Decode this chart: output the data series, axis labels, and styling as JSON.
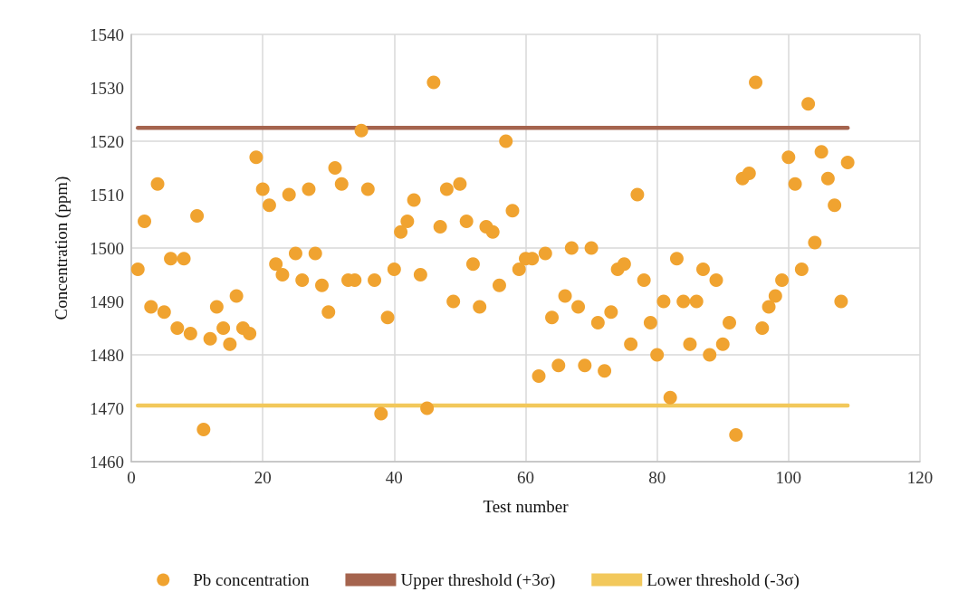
{
  "chart_data": {
    "type": "scatter",
    "xlabel": "Test number",
    "ylabel": "Concentration (ppm)",
    "xlim": [
      0,
      120
    ],
    "xticks": [
      0,
      20,
      40,
      60,
      80,
      100,
      120
    ],
    "ylim": [
      1460,
      1540
    ],
    "yticks": [
      1460,
      1470,
      1480,
      1490,
      1500,
      1510,
      1520,
      1530,
      1540
    ],
    "grid": true,
    "legend": "bottom",
    "marker": "circle",
    "series": [
      {
        "name": "Pb concentration",
        "color": "#f0a330",
        "x": [
          1,
          2,
          3,
          4,
          5,
          6,
          7,
          8,
          9,
          10,
          11,
          12,
          13,
          14,
          15,
          16,
          17,
          18,
          19,
          20,
          21,
          22,
          23,
          24,
          25,
          26,
          27,
          28,
          29,
          30,
          31,
          32,
          33,
          34,
          35,
          36,
          37,
          38,
          39,
          40,
          41,
          42,
          43,
          44,
          45,
          46,
          47,
          48,
          49,
          50,
          51,
          52,
          53,
          54,
          55,
          56,
          57,
          58,
          59,
          60,
          61,
          62,
          63,
          64,
          65,
          66,
          67,
          68,
          69,
          70,
          71,
          72,
          73,
          74,
          75,
          76,
          77,
          78,
          79,
          80,
          81,
          82,
          83,
          84,
          85,
          86,
          87,
          88,
          89,
          90,
          91,
          92,
          93,
          94,
          95,
          96,
          97,
          98,
          99,
          100,
          101,
          102,
          103,
          104,
          105,
          106,
          107,
          108,
          109
        ],
        "values": [
          1496,
          1505,
          1489,
          1512,
          1488,
          1498,
          1485,
          1498,
          1484,
          1506,
          1466,
          1483,
          1489,
          1485,
          1482,
          1491,
          1485,
          1484,
          1517,
          1511,
          1508,
          1497,
          1495,
          1510,
          1499,
          1494,
          1511,
          1499,
          1493,
          1488,
          1515,
          1512,
          1494,
          1494,
          1522,
          1511,
          1494,
          1469,
          1487,
          1496,
          1503,
          1505,
          1509,
          1495,
          1470,
          1531,
          1504,
          1511,
          1490,
          1512,
          1505,
          1497,
          1489,
          1504,
          1503,
          1493,
          1520,
          1507,
          1496,
          1498,
          1498,
          1476,
          1499,
          1487,
          1478,
          1491,
          1500,
          1489,
          1478,
          1500,
          1486,
          1477,
          1488,
          1496,
          1497,
          1482,
          1510,
          1494,
          1486,
          1480,
          1490,
          1472,
          1498,
          1490,
          1482,
          1490,
          1496,
          1480,
          1494,
          1482,
          1486,
          1465,
          1513,
          1514,
          1531,
          1485,
          1489,
          1491,
          1494,
          1517,
          1512,
          1496,
          1527,
          1501,
          1518,
          1513,
          1508,
          1490,
          1516
        ]
      },
      {
        "name": "Upper threshold (+3σ)",
        "type": "line",
        "marker": "none",
        "color": "#a5644e",
        "x": [
          1,
          109
        ],
        "values": [
          1522.5,
          1522.5
        ]
      },
      {
        "name": "Lower threshold (-3σ)",
        "type": "line",
        "marker": "none",
        "color": "#f2c85b",
        "x": [
          1,
          109
        ],
        "values": [
          1470.5,
          1470.5
        ]
      }
    ]
  }
}
